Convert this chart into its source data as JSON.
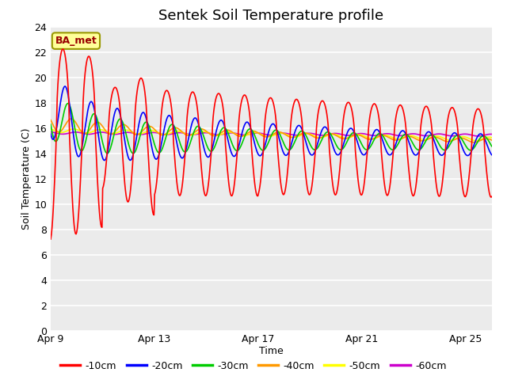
{
  "title": "Sentek Soil Temperature profile",
  "xlabel": "Time",
  "ylabel": "Soil Temperature (C)",
  "ylim": [
    0,
    24
  ],
  "yticks": [
    0,
    2,
    4,
    6,
    8,
    10,
    12,
    14,
    16,
    18,
    20,
    22,
    24
  ],
  "xtick_labels": [
    "Apr 9",
    "Apr 13",
    "Apr 17",
    "Apr 21",
    "Apr 25"
  ],
  "xtick_pos": [
    0,
    4,
    8,
    12,
    16
  ],
  "xlim": [
    0,
    17
  ],
  "plot_bg_color": "#ebebeb",
  "fig_bg_color": "#ffffff",
  "grid_color": "#ffffff",
  "annotation_text": "BA_met",
  "annotation_box_color": "#ffff99",
  "annotation_border_color": "#999900",
  "annotation_text_color": "#990000",
  "legend_labels": [
    "-10cm",
    "-20cm",
    "-30cm",
    "-40cm",
    "-50cm",
    "-60cm"
  ],
  "line_colors": [
    "#ff0000",
    "#0000ff",
    "#00cc00",
    "#ff9900",
    "#ffff00",
    "#cc00cc"
  ],
  "title_fontsize": 13,
  "axis_label_fontsize": 9,
  "tick_fontsize": 9,
  "legend_fontsize": 9
}
